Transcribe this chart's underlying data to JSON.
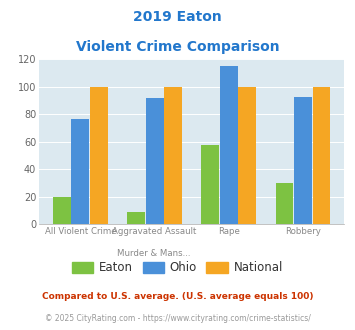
{
  "title_line1": "2019 Eaton",
  "title_line2": "Violent Crime Comparison",
  "categories_top": [
    "",
    "Murder & Mans...",
    "",
    ""
  ],
  "categories_bottom": [
    "All Violent Crime",
    "Aggravated Assault",
    "Rape",
    "Robbery"
  ],
  "eaton": [
    20,
    9,
    58,
    30
  ],
  "ohio": [
    77,
    92,
    115,
    93
  ],
  "national": [
    100,
    100,
    100,
    100
  ],
  "eaton_color": "#7dc242",
  "ohio_color": "#4a90d9",
  "national_color": "#f5a623",
  "bg_color": "#dce9f0",
  "title_color": "#2277cc",
  "ylim": [
    0,
    120
  ],
  "yticks": [
    0,
    20,
    40,
    60,
    80,
    100,
    120
  ],
  "footnote1": "Compared to U.S. average. (U.S. average equals 100)",
  "footnote2": "© 2025 CityRating.com - https://www.cityrating.com/crime-statistics/",
  "footnote1_color": "#cc3300",
  "footnote2_color": "#999999",
  "legend_labels": [
    "Eaton",
    "Ohio",
    "National"
  ]
}
